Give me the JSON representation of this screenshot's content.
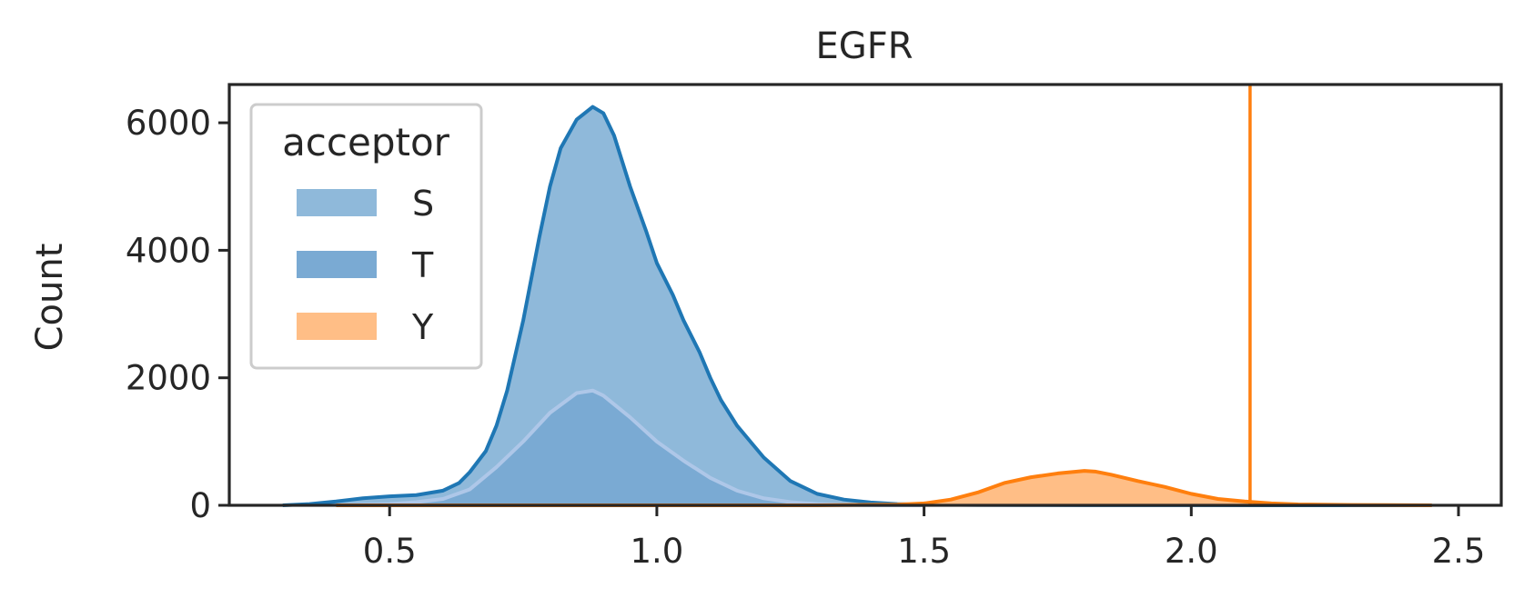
{
  "chart_data": {
    "type": "area",
    "title": "EGFR",
    "xlabel": "",
    "ylabel": "Count",
    "xlim": [
      0.2,
      2.58
    ],
    "ylim": [
      0,
      6600
    ],
    "xticks": [
      "0.5",
      "1.0",
      "1.5",
      "2.0",
      "2.5"
    ],
    "yticks": [
      "0",
      "2000",
      "4000",
      "6000"
    ],
    "legend": {
      "title": "acceptor",
      "placement": "top-left",
      "entries": [
        "S",
        "T",
        "Y"
      ]
    },
    "grid": false,
    "series": [
      {
        "name": "S",
        "fill_color": "#8fb9da",
        "line_color": "#1f77b4",
        "x": [
          0.3,
          0.35,
          0.4,
          0.45,
          0.5,
          0.55,
          0.6,
          0.63,
          0.65,
          0.68,
          0.7,
          0.72,
          0.75,
          0.78,
          0.8,
          0.82,
          0.85,
          0.88,
          0.9,
          0.92,
          0.95,
          0.98,
          1.0,
          1.03,
          1.05,
          1.08,
          1.1,
          1.12,
          1.15,
          1.18,
          1.2,
          1.25,
          1.3,
          1.35,
          1.4,
          1.45,
          1.5,
          1.6,
          1.7,
          1.8,
          2.0,
          2.2,
          2.45
        ],
        "values": [
          0,
          20,
          60,
          110,
          140,
          160,
          230,
          350,
          520,
          850,
          1250,
          1800,
          2900,
          4200,
          5000,
          5600,
          6050,
          6250,
          6150,
          5800,
          5000,
          4300,
          3800,
          3300,
          2900,
          2400,
          2000,
          1650,
          1250,
          950,
          750,
          380,
          180,
          90,
          45,
          20,
          10,
          5,
          3,
          2,
          1,
          0,
          0
        ]
      },
      {
        "name": "T",
        "fill_color": "#7aaad3",
        "line_color": "#aec7e8",
        "x": [
          0.4,
          0.5,
          0.55,
          0.6,
          0.65,
          0.7,
          0.75,
          0.8,
          0.85,
          0.88,
          0.9,
          0.95,
          1.0,
          1.05,
          1.1,
          1.15,
          1.2,
          1.25,
          1.3,
          1.35,
          1.4,
          1.5
        ],
        "values": [
          0,
          20,
          50,
          100,
          250,
          600,
          1000,
          1450,
          1760,
          1800,
          1720,
          1380,
          1000,
          700,
          430,
          230,
          110,
          50,
          20,
          8,
          2,
          0
        ]
      },
      {
        "name": "Y",
        "fill_color": "#ffbe86",
        "line_color": "#ff7f0e",
        "x": [
          0.4,
          1.3,
          1.45,
          1.5,
          1.55,
          1.6,
          1.65,
          1.7,
          1.75,
          1.8,
          1.82,
          1.85,
          1.9,
          1.95,
          2.0,
          2.05,
          2.1,
          2.15,
          2.2,
          2.3,
          2.45
        ],
        "values": [
          0,
          0,
          10,
          30,
          90,
          200,
          350,
          440,
          500,
          540,
          530,
          480,
          380,
          290,
          180,
          100,
          60,
          30,
          15,
          5,
          0
        ]
      }
    ],
    "reference_line": {
      "axis": "x",
      "value": 2.11,
      "color": "#ff7f0e"
    }
  }
}
